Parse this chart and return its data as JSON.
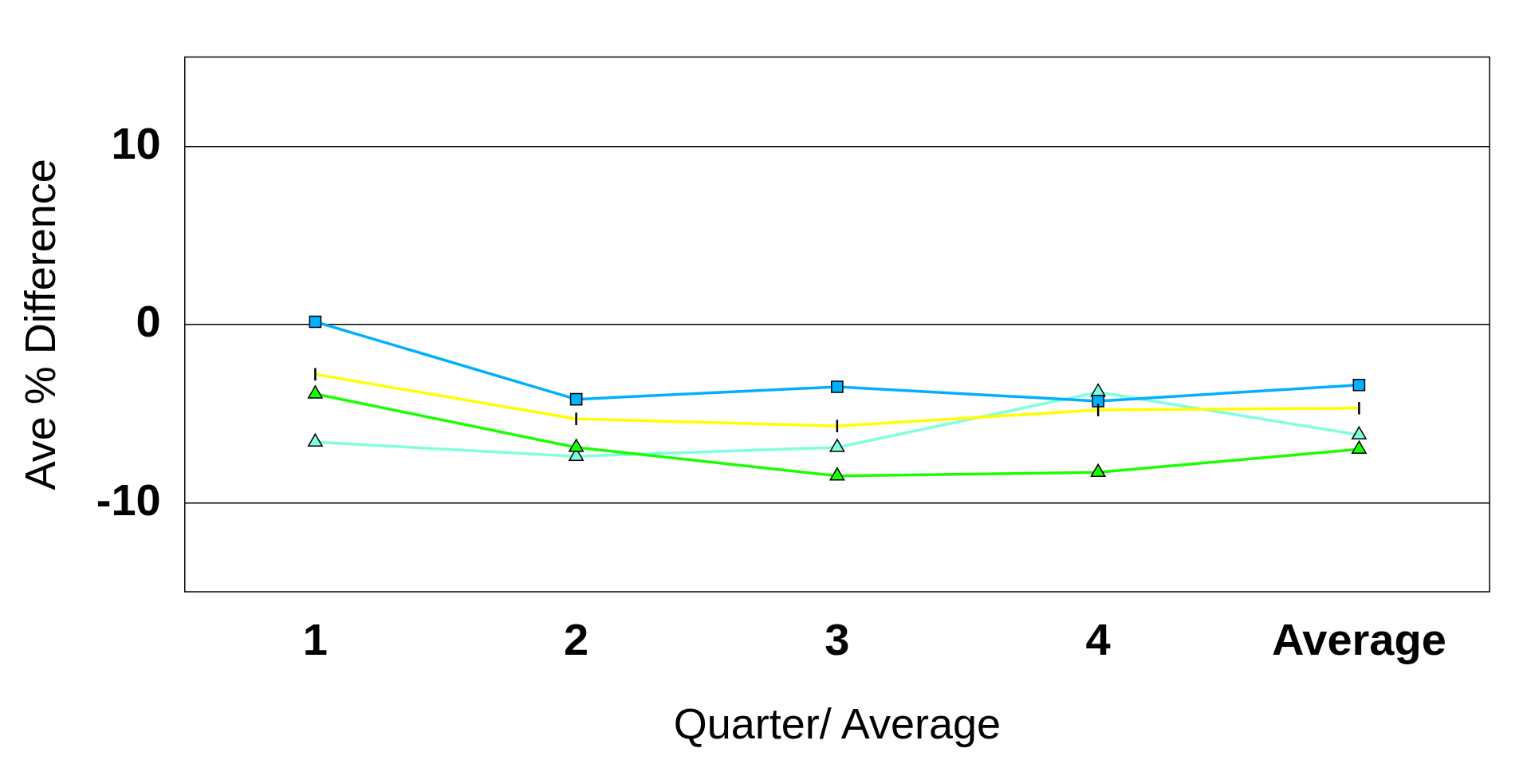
{
  "chart_data": {
    "type": "line",
    "xlabel": "Quarter/ Average",
    "ylabel": "Ave % Difference",
    "categories": [
      "1",
      "2",
      "3",
      "4",
      "Average"
    ],
    "ylim": [
      -15,
      15
    ],
    "yticks": [
      -10,
      0,
      10
    ],
    "grid": "y",
    "legend": false,
    "line_style": "solid",
    "series": [
      {
        "color": "#00b0ff",
        "marker": "square",
        "values": [
          0.15,
          -4.2,
          -3.5,
          -4.3,
          -3.4
        ]
      },
      {
        "color": "#ffff00",
        "marker": "none",
        "values": [
          -2.8,
          -5.3,
          -5.7,
          -4.8,
          -4.7
        ],
        "errors": [
          0.35,
          0.35,
          0.35,
          0.35,
          0.35
        ]
      },
      {
        "color": "#1aff00",
        "marker": "triangle",
        "values": [
          -3.9,
          -6.9,
          -8.5,
          -8.3,
          -7.0
        ]
      },
      {
        "color": "#80ffdf",
        "marker": "triangle",
        "values": [
          -6.6,
          -7.4,
          -6.9,
          -3.8,
          -6.2
        ]
      }
    ]
  }
}
